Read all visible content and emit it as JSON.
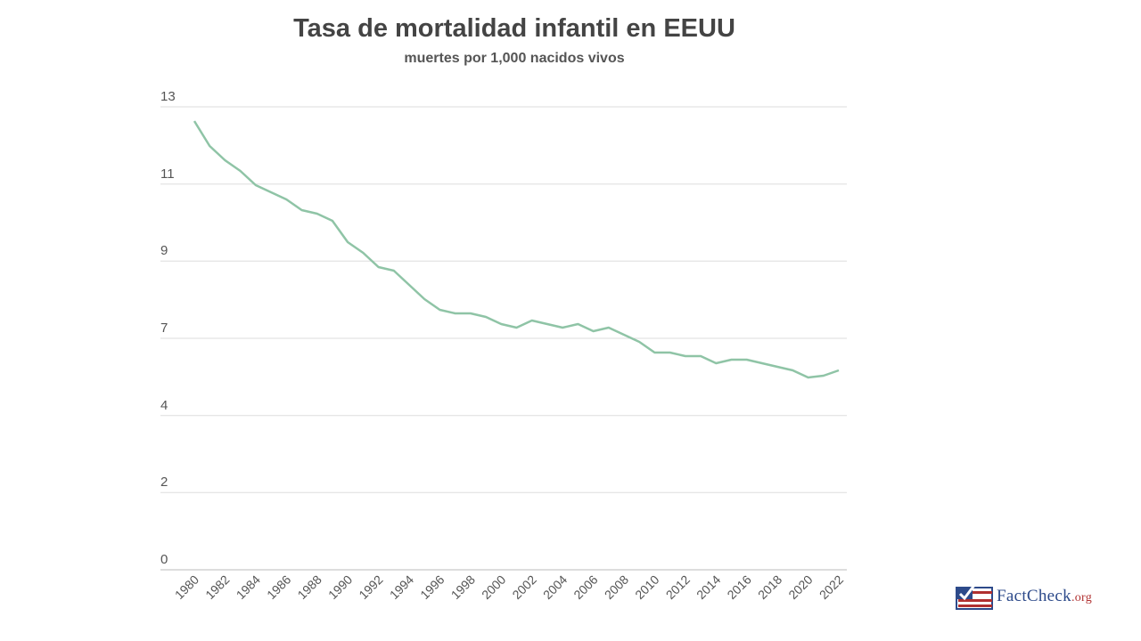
{
  "chart_data": {
    "type": "line",
    "title": "Tasa de mortalidad infantil en EEUU",
    "subtitle": "muertes por 1,000 nacidos vivos",
    "xlabel": "",
    "ylabel": "",
    "ylim": [
      0,
      13
    ],
    "y_ticks": [
      0,
      2.17,
      4.33,
      6.5,
      8.67,
      10.83,
      13
    ],
    "y_tick_labels": [
      "0",
      "2",
      "4",
      "7",
      "9",
      "11",
      "13"
    ],
    "x_tick_labels": [
      "1980",
      "1982",
      "1984",
      "1986",
      "1988",
      "1990",
      "1992",
      "1994",
      "1996",
      "1998",
      "2000",
      "2002",
      "2004",
      "2006",
      "2008",
      "2010",
      "2012",
      "2014",
      "2016",
      "2018",
      "2020",
      "2022"
    ],
    "grid": true,
    "line_color": "#8fc4a6",
    "x": [
      1980,
      1981,
      1982,
      1983,
      1984,
      1985,
      1986,
      1987,
      1988,
      1989,
      1990,
      1991,
      1992,
      1993,
      1994,
      1995,
      1996,
      1997,
      1998,
      1999,
      2000,
      2001,
      2002,
      2003,
      2004,
      2005,
      2006,
      2007,
      2008,
      2009,
      2010,
      2011,
      2012,
      2013,
      2014,
      2015,
      2016,
      2017,
      2018,
      2019,
      2020,
      2021,
      2022
    ],
    "values": [
      12.6,
      11.9,
      11.5,
      11.2,
      10.8,
      10.6,
      10.4,
      10.1,
      10.0,
      9.8,
      9.2,
      8.9,
      8.5,
      8.4,
      8.0,
      7.6,
      7.3,
      7.2,
      7.2,
      7.1,
      6.9,
      6.8,
      7.0,
      6.9,
      6.8,
      6.9,
      6.7,
      6.8,
      6.6,
      6.4,
      6.1,
      6.1,
      6.0,
      6.0,
      5.8,
      5.9,
      5.9,
      5.8,
      5.7,
      5.6,
      5.4,
      5.45,
      5.6
    ]
  },
  "logo": {
    "text": "FactCheck",
    "suffix": ".org"
  }
}
